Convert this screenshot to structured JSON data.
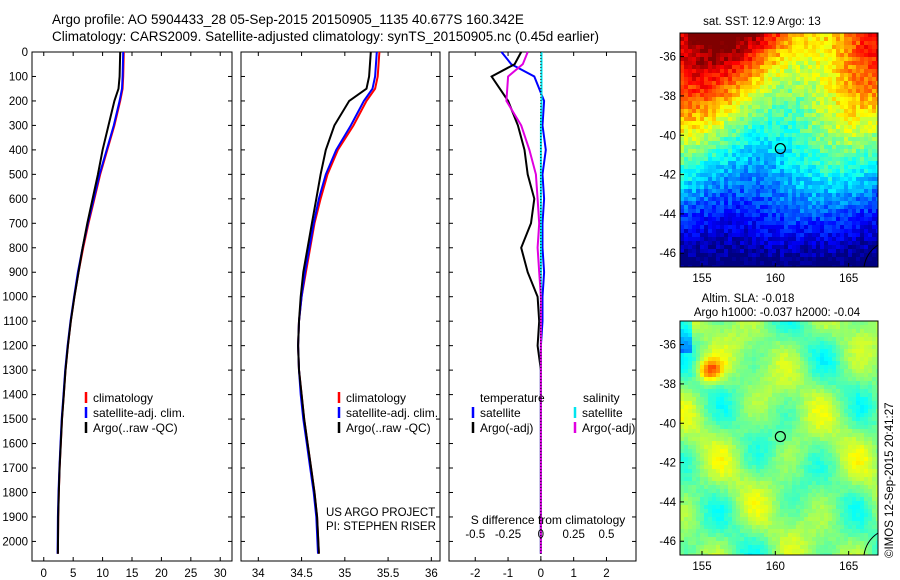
{
  "header": {
    "line1": "Argo profile: AO 5904433_28 05-Sep-2015 20150905_1135 40.677S 160.342E",
    "line2": "Climatology: CARS2009. Satellite-adjusted climatology: synTS_20150905.nc (0.45d earlier)"
  },
  "stamp": "©IMOS 12-Sep-2015 20:41:27",
  "colors": {
    "climatology": "#ff0000",
    "satellite": "#0000ff",
    "argo": "#000000",
    "salinity_satellite": "#00e5ee",
    "salinity_argo": "#e000e0"
  },
  "chart_data": [
    {
      "type": "line",
      "name": "temperature-panel",
      "xlabel": "temperature (deg C)",
      "ylabel": "",
      "xlim": [
        -2,
        32
      ],
      "ylim": [
        2080,
        0
      ],
      "xticks": [
        0,
        5,
        10,
        15,
        20,
        25,
        30
      ],
      "xticklabels": [
        "0",
        "5",
        "10",
        "15",
        "20",
        "25",
        "30"
      ],
      "yticks": [
        0,
        100,
        200,
        300,
        400,
        500,
        600,
        700,
        800,
        900,
        1000,
        1100,
        1200,
        1300,
        1400,
        1500,
        1600,
        1700,
        1800,
        1900,
        2000
      ],
      "yticklabels": [
        "0",
        "100",
        "200",
        "300",
        "400",
        "500",
        "600",
        "700",
        "800",
        "900",
        "1000",
        "1100",
        "1200",
        "1300",
        "1400",
        "1500",
        "1600",
        "1700",
        "1800",
        "1900",
        "2000"
      ],
      "legend": [
        "climatology",
        "satellite-adj. clim.",
        "Argo(..raw -QC)"
      ],
      "series": [
        {
          "name": "climatology",
          "color": "#ff0000",
          "x": [
            13.6,
            13.5,
            13.4,
            13.0,
            12.0,
            10.8,
            9.6,
            8.6,
            7.6,
            6.7,
            5.9,
            5.2,
            4.6,
            4.1,
            3.7,
            3.4,
            3.1,
            2.9,
            2.7,
            2.55,
            2.45,
            2.4
          ],
          "y": [
            0,
            100,
            150,
            200,
            300,
            400,
            500,
            600,
            700,
            800,
            900,
            1000,
            1100,
            1200,
            1300,
            1400,
            1500,
            1600,
            1700,
            1800,
            1900,
            2050
          ]
        },
        {
          "name": "satellite-adj. clim.",
          "color": "#0000ff",
          "x": [
            13.5,
            13.4,
            13.3,
            12.9,
            11.9,
            10.7,
            9.5,
            8.5,
            7.5,
            6.6,
            5.8,
            5.15,
            4.55,
            4.05,
            3.65,
            3.35,
            3.05,
            2.85,
            2.65,
            2.5,
            2.4,
            2.35
          ],
          "y": [
            0,
            100,
            150,
            200,
            300,
            400,
            500,
            600,
            700,
            800,
            900,
            1000,
            1100,
            1200,
            1300,
            1400,
            1500,
            1600,
            1700,
            1800,
            1900,
            2050
          ]
        },
        {
          "name": "Argo(..raw -QC)",
          "color": "#000000",
          "x": [
            13.0,
            12.9,
            12.7,
            12.0,
            11.0,
            10.0,
            9.2,
            8.3,
            7.4,
            6.6,
            5.9,
            5.2,
            4.6,
            4.1,
            3.7,
            3.4,
            3.1,
            2.9,
            2.7,
            2.55,
            2.45,
            2.4
          ],
          "y": [
            0,
            100,
            150,
            200,
            300,
            400,
            500,
            600,
            700,
            800,
            900,
            1000,
            1100,
            1200,
            1300,
            1400,
            1500,
            1600,
            1700,
            1800,
            1900,
            2050
          ]
        }
      ]
    },
    {
      "type": "line",
      "name": "salinity-panel",
      "xlabel": "salinity",
      "ylabel": "",
      "xlim": [
        33.8,
        36.1
      ],
      "ylim": [
        2080,
        0
      ],
      "xticks": [
        34,
        34.5,
        35,
        35.5,
        36
      ],
      "xticklabels": [
        "34",
        "34.5",
        "35",
        "35.5",
        "36"
      ],
      "legend": [
        "climatology",
        "satellite-adj. clim.",
        "Argo(..raw -QC)"
      ],
      "annotation": [
        "US ARGO PROJECT",
        "PI: STEPHEN RISER"
      ],
      "series": [
        {
          "name": "climatology",
          "color": "#ff0000",
          "x": [
            35.4,
            35.38,
            35.35,
            35.25,
            35.1,
            34.92,
            34.8,
            34.72,
            34.65,
            34.6,
            34.55,
            34.5,
            34.47,
            34.46,
            34.47,
            34.5,
            34.53,
            34.57,
            34.61,
            34.65,
            34.68,
            34.7
          ],
          "y": [
            0,
            100,
            150,
            200,
            300,
            400,
            500,
            600,
            700,
            800,
            900,
            1000,
            1100,
            1200,
            1300,
            1400,
            1500,
            1600,
            1700,
            1800,
            1900,
            2050
          ]
        },
        {
          "name": "satellite-adj. clim.",
          "color": "#0000ff",
          "x": [
            35.37,
            35.35,
            35.32,
            35.22,
            35.07,
            34.9,
            34.78,
            34.7,
            34.64,
            34.59,
            34.54,
            34.5,
            34.47,
            34.46,
            34.47,
            34.49,
            34.52,
            34.56,
            34.6,
            34.64,
            34.67,
            34.69
          ],
          "y": [
            0,
            100,
            150,
            200,
            300,
            400,
            500,
            600,
            700,
            800,
            900,
            1000,
            1100,
            1200,
            1300,
            1400,
            1500,
            1600,
            1700,
            1800,
            1900,
            2050
          ]
        },
        {
          "name": "Argo(..raw -QC)",
          "color": "#000000",
          "x": [
            35.3,
            35.28,
            35.25,
            35.05,
            34.88,
            34.78,
            34.72,
            34.67,
            34.62,
            34.57,
            34.52,
            34.49,
            34.47,
            34.46,
            34.47,
            34.5,
            34.53,
            34.57,
            34.61,
            34.65,
            34.68,
            34.7
          ],
          "y": [
            0,
            100,
            150,
            200,
            300,
            400,
            500,
            600,
            700,
            800,
            900,
            1000,
            1100,
            1200,
            1300,
            1400,
            1500,
            1600,
            1700,
            1800,
            1900,
            2050
          ]
        }
      ]
    },
    {
      "type": "line",
      "name": "difference-panel",
      "xlabel": "T difference from climatology",
      "xlabel2": "S difference from climatology",
      "xlim": [
        -2.8,
        2.9
      ],
      "ylim": [
        2080,
        0
      ],
      "xticks": [
        -2,
        -1,
        0,
        1,
        2
      ],
      "xticklabels": [
        "-2",
        "-1",
        "0",
        "1",
        "2"
      ],
      "xticks2": [
        -0.5,
        -0.25,
        0,
        0.25,
        0.5
      ],
      "xticklabels2": [
        "-0.5",
        "-0.25",
        "0",
        "0.25",
        "0.5"
      ],
      "legend_temperature": [
        "temperature",
        "satellite",
        "Argo(-adj)"
      ],
      "legend_salinity": [
        "salinity",
        "satellite",
        "Argo(-adj)"
      ],
      "series": [
        {
          "name": "temperature satellite",
          "color": "#0000ff",
          "x": [
            -1.2,
            -0.9,
            -0.2,
            0.1,
            0.05,
            0.15,
            0.05,
            0.1,
            0.05,
            0.05,
            0.1,
            0.05,
            0.05,
            0.0,
            0.0,
            0.0,
            0.0,
            0.0,
            0.0,
            0.0,
            0.0,
            0.0
          ],
          "y": [
            0,
            50,
            100,
            200,
            300,
            400,
            500,
            600,
            700,
            800,
            900,
            1000,
            1100,
            1200,
            1300,
            1400,
            1500,
            1600,
            1700,
            1800,
            1900,
            2050
          ]
        },
        {
          "name": "temperature Argo(-adj)",
          "color": "#000000",
          "x": [
            -0.6,
            -0.8,
            -1.5,
            -1.0,
            -0.7,
            -0.5,
            -0.4,
            -0.2,
            -0.3,
            -0.6,
            -0.4,
            -0.1,
            -0.05,
            -0.1,
            0.0,
            0.0,
            0.0,
            0.0,
            0.0,
            0.0,
            0.0,
            0.0
          ],
          "y": [
            0,
            50,
            100,
            200,
            300,
            400,
            500,
            600,
            700,
            800,
            900,
            1000,
            1100,
            1200,
            1300,
            1400,
            1500,
            1600,
            1700,
            1800,
            1900,
            2050
          ]
        },
        {
          "name": "salinity satellite",
          "color": "#00e5ee",
          "x": [
            0.02,
            0.02,
            0.02,
            0.02,
            0.0,
            0.0,
            0.0,
            0.0,
            0.0,
            0.0,
            0.0,
            0.0,
            0.0,
            0.0,
            0.0,
            0.0,
            0.0,
            0.0,
            0.0,
            0.0,
            0.0,
            0.0
          ],
          "y": [
            0,
            50,
            100,
            200,
            300,
            400,
            500,
            600,
            700,
            800,
            900,
            1000,
            1100,
            1200,
            1300,
            1400,
            1500,
            1600,
            1700,
            1800,
            1900,
            2050
          ]
        },
        {
          "name": "salinity Argo(-adj)",
          "color": "#e000e0",
          "x": [
            -0.4,
            -0.55,
            -1.0,
            -1.05,
            -0.6,
            -0.35,
            -0.15,
            -0.1,
            -0.05,
            -0.1,
            -0.05,
            0.0,
            0.0,
            0.0,
            0.0,
            0.0,
            0.0,
            0.0,
            0.0,
            0.0,
            0.0,
            0.0
          ],
          "y": [
            0,
            50,
            100,
            200,
            300,
            400,
            500,
            600,
            700,
            800,
            900,
            1000,
            1100,
            1200,
            1300,
            1400,
            1500,
            1600,
            1700,
            1800,
            1900,
            2050
          ]
        }
      ]
    },
    {
      "type": "heatmap",
      "name": "sst-map",
      "title": "sat. SST: 12.9 Argo: 13",
      "xlim": [
        153.5,
        167
      ],
      "ylim": [
        -46.7,
        -34.8
      ],
      "xticks": [
        155,
        160,
        165
      ],
      "xticklabels": [
        "155",
        "160",
        "165"
      ],
      "yticks": [
        -36,
        -38,
        -40,
        -42,
        -44,
        -46
      ],
      "yticklabels": [
        "-36",
        "-38",
        "-40",
        "-42",
        "-44",
        "-46"
      ],
      "marker": {
        "lon": 160.342,
        "lat": -40.677
      }
    },
    {
      "type": "heatmap",
      "name": "sla-map",
      "title": "Altim. SLA: -0.018",
      "subtitle": "Argo h1000: -0.037 h2000: -0.04",
      "xlim": [
        153.5,
        167
      ],
      "ylim": [
        -46.7,
        -34.8
      ],
      "xticks": [
        155,
        160,
        165
      ],
      "xticklabels": [
        "155",
        "160",
        "165"
      ],
      "yticks": [
        -36,
        -38,
        -40,
        -42,
        -44,
        -46
      ],
      "yticklabels": [
        "-36",
        "-38",
        "-40",
        "-42",
        "-44",
        "-46"
      ],
      "marker": {
        "lon": 160.342,
        "lat": -40.677
      }
    }
  ]
}
